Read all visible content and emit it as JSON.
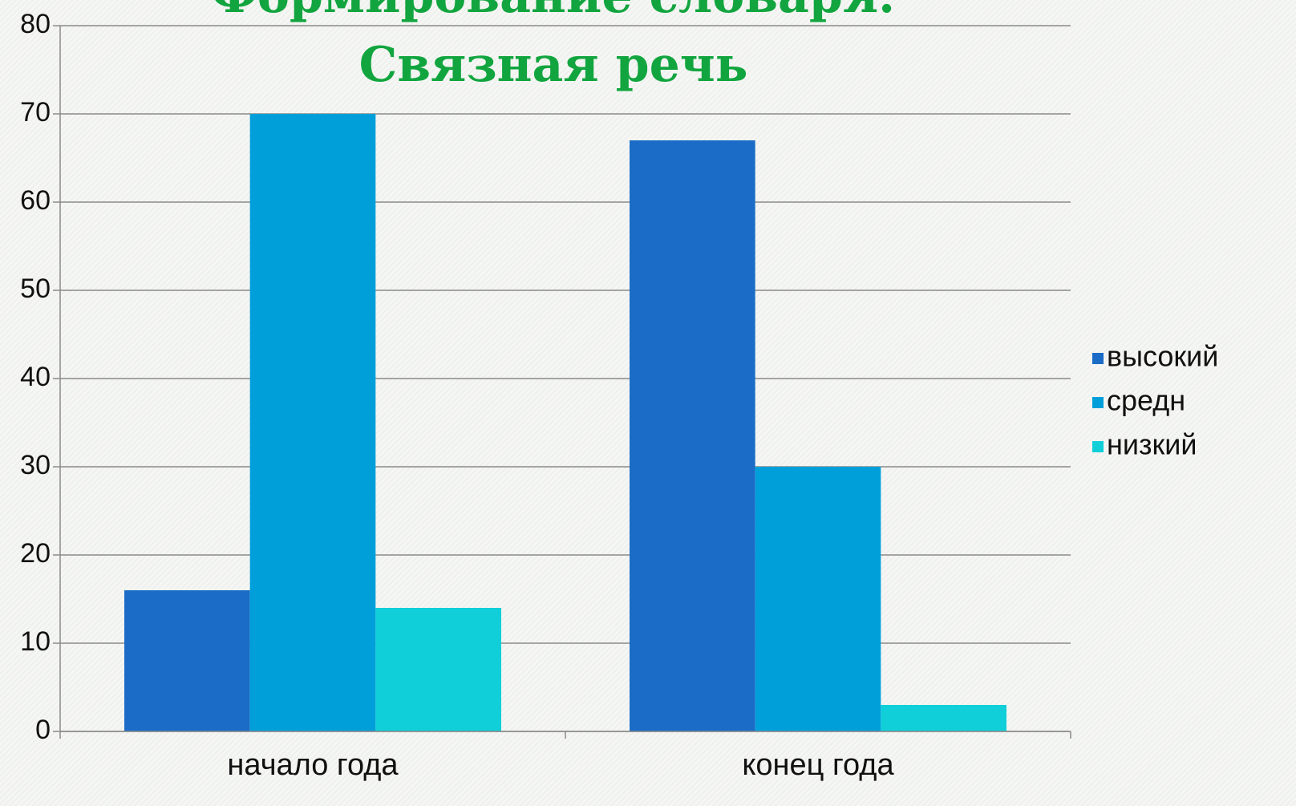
{
  "chart_data": {
    "type": "bar",
    "title": "Формирование словаря. Связная речь",
    "categories": [
      "начало года",
      "конец года"
    ],
    "series": [
      {
        "name": "высокий",
        "color": "#1a6cc6",
        "values": [
          16,
          67
        ]
      },
      {
        "name": "средн",
        "color": "#009fda",
        "values": [
          70,
          30
        ]
      },
      {
        "name": "низкий",
        "color": "#10cfd9",
        "values": [
          14,
          3
        ]
      }
    ],
    "ylim": [
      0,
      80
    ],
    "yticks": [
      0,
      10,
      20,
      30,
      40,
      50,
      60,
      70,
      80
    ],
    "grid": true,
    "legend": "right"
  }
}
